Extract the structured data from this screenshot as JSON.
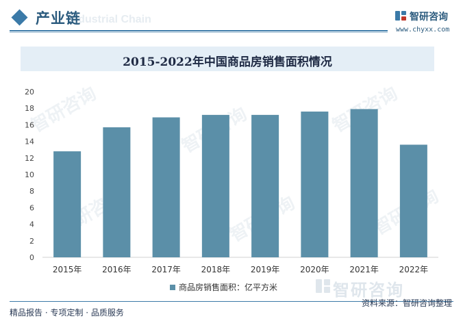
{
  "header": {
    "title": "产业链",
    "watermark_text": "Industrial Chain",
    "brand_name": "智研咨询",
    "brand_url": "www.chyxx.com"
  },
  "chart_data": {
    "type": "bar",
    "title": "2015-2022年中国商品房销售面积情况",
    "categories": [
      "2015年",
      "2016年",
      "2017年",
      "2018年",
      "2019年",
      "2020年",
      "2021年",
      "2022年"
    ],
    "series": [
      {
        "name": "商品房销售面积：亿平方米",
        "values": [
          12.8,
          15.7,
          16.9,
          17.2,
          17.2,
          17.6,
          17.9,
          13.6
        ],
        "color": "#5b8fa8"
      }
    ],
    "yticks": [
      "0",
      "2",
      "4",
      "6",
      "8",
      "10",
      "12",
      "14",
      "16",
      "18",
      "20"
    ],
    "ylim": [
      0,
      20
    ],
    "xlabel": "",
    "ylabel": "",
    "legend_position": "bottom"
  },
  "footer": {
    "left_text": "精品报告 · 专项定制 · 品质服务",
    "source_text": "资料来源：智研咨询整理",
    "brand_big": "智研咨询"
  },
  "watermark": {
    "text": "智研咨询"
  },
  "colors": {
    "accent": "#3b7aa8",
    "bar": "#5b8fa8",
    "banner": "#e4eef6"
  }
}
